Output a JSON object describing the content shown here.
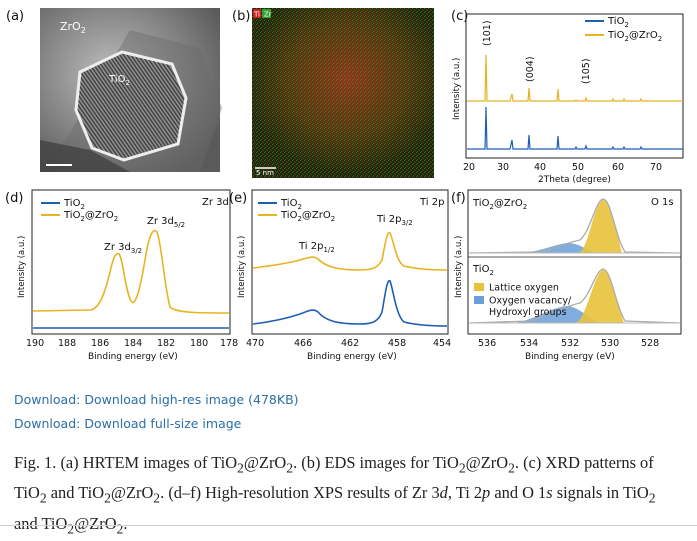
{
  "figure": {
    "a": {
      "letter": "(a)",
      "labels": [
        "ZrO",
        "2",
        "TiO",
        "2"
      ]
    },
    "b": {
      "letter": "(b)",
      "legend": [
        "Ti",
        "Zr"
      ],
      "scale": "5 nm"
    },
    "c": {
      "letter": "(c)",
      "series": [
        {
          "name": "TiO",
          "sub": "2",
          "color": "#1f5fb3"
        },
        {
          "name": "TiO",
          "sub": "2",
          "name2": "@ZrO",
          "sub2": "2",
          "color": "#e8b323"
        }
      ],
      "peaks": [
        "(101)",
        "(004)",
        "(105)"
      ],
      "xlabel": "2Theta (degree)",
      "ylabel": "Intensity (a.u.)",
      "xticks": [
        "20",
        "30",
        "40",
        "50",
        "60",
        "70"
      ]
    },
    "d": {
      "letter": "(d)",
      "tag": "Zr 3d",
      "series": [
        {
          "name": "TiO",
          "sub": "2"
        },
        {
          "name": "TiO",
          "sub": "2",
          "name2": "@ZrO",
          "sub2": "2"
        }
      ],
      "peaks": [
        {
          "main": "Zr 3d",
          "sub": "3/2"
        },
        {
          "main": "Zr 3d",
          "sub": "5/2"
        }
      ],
      "xlabel": "Binding energy (eV)",
      "ylabel": "Intensity (a.u.)",
      "xticks": [
        "190",
        "188",
        "186",
        "184",
        "182",
        "180",
        "178"
      ]
    },
    "e": {
      "letter": "(e)",
      "tag": "Ti 2p",
      "series": [
        {
          "name": "TiO",
          "sub": "2"
        },
        {
          "name": "TiO",
          "sub": "2",
          "name2": "@ZrO",
          "sub2": "2"
        }
      ],
      "peaks": [
        {
          "main": "Ti 2p",
          "sub": "1/2"
        },
        {
          "main": "Ti 2p",
          "sub": "3/2"
        }
      ],
      "xlabel": "Binding energy (eV)",
      "ylabel": "Intensity (a.u.)",
      "xticks": [
        "470",
        "466",
        "462",
        "458",
        "454"
      ]
    },
    "f": {
      "letter": "(f)",
      "tag": "O 1s",
      "top_label": {
        "name": "TiO",
        "sub": "2",
        "name2": "@ZrO",
        "sub2": "2"
      },
      "bottom_label": {
        "name": "TiO",
        "sub": "2"
      },
      "legend": [
        "Lattice oxygen",
        "Oxygen vacancy/",
        "Hydroxyl groups"
      ],
      "legend_colors": [
        "#e8c23a",
        "#6a9fd8"
      ],
      "xlabel": "Binding energy (eV)",
      "ylabel": "Intensity (a.u.)",
      "xticks": [
        "536",
        "534",
        "532",
        "530",
        "528"
      ]
    }
  },
  "links": {
    "highres": "Download: Download high-res image (478KB)",
    "fullsize": "Download: Download full-size image"
  },
  "caption": {
    "p1": "Fig. 1. (a) HRTEM images of TiO",
    "s1": "2",
    "p2": "@ZrO",
    "s2": "2",
    "p3": ". (b) EDS images for TiO",
    "s3": "2",
    "p4": "@ZrO",
    "s4": "2",
    "p5": ". (c) XRD patterns of TiO",
    "s5": "2",
    "p6": " and TiO",
    "s6": "2",
    "p7": "@ZrO",
    "s7": "2",
    "p8": ". (d–f) High-resolution XPS results of Zr 3",
    "i1": "d",
    "p9": ", Ti 2",
    "i2": "p",
    "p10": " and O 1",
    "i3": "s",
    "p11": " signals in TiO",
    "s8": "2",
    "p12": " and TiO",
    "s9": "2",
    "p13": "@ZrO",
    "s10": "2",
    "p14": "."
  }
}
